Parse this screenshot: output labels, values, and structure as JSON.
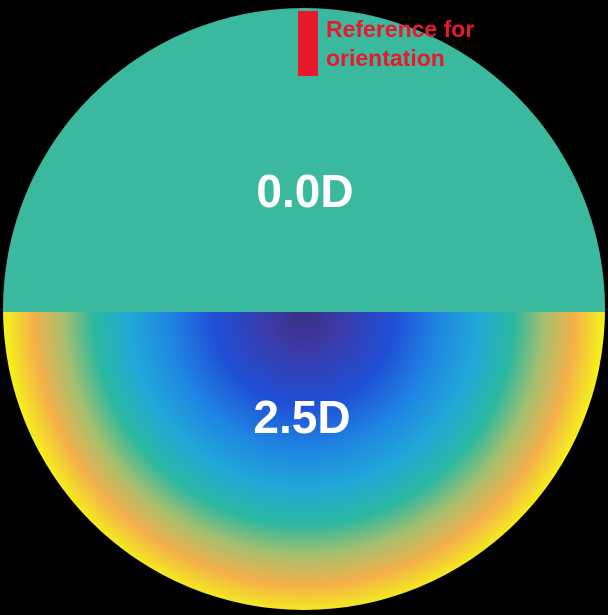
{
  "diagram": {
    "zones": [
      {
        "id": "upper",
        "power_label": "0.0D",
        "fill": "#3bb99e"
      },
      {
        "id": "lower",
        "power_label": "2.5D",
        "fill": "gradient"
      }
    ],
    "reference_marker": {
      "line1": "Reference for",
      "line2": "orientation",
      "color": "#e8192c"
    },
    "colors": {
      "background": "#000000",
      "upper_zone": "#3bb99e",
      "gradient_center": "#3a2f86",
      "gradient_blue": "#1f4fd6",
      "gradient_cyan": "#20a8d8",
      "gradient_teal": "#2cb8a0",
      "gradient_orange": "#f4b04a",
      "gradient_yellow": "#f5f21a",
      "label_text": "#ffffff"
    }
  }
}
